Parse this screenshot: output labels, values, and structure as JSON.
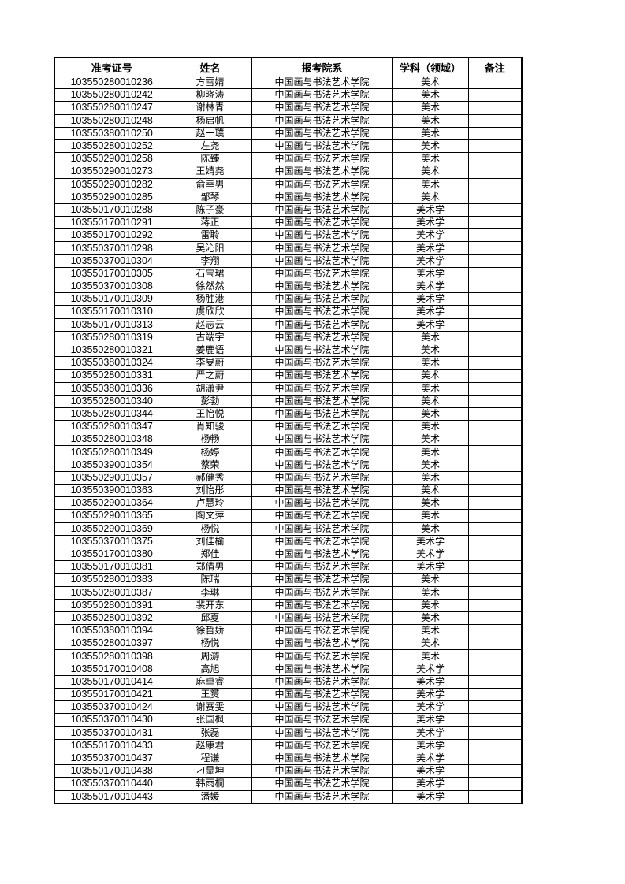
{
  "headers": [
    "准考证号",
    "姓名",
    "报考院系",
    "学科（领域）",
    "备注"
  ],
  "rows": [
    [
      "103550280010236",
      "方雪婧",
      "中国画与书法艺术学院",
      "美术",
      ""
    ],
    [
      "103550280010242",
      "柳晓涛",
      "中国画与书法艺术学院",
      "美术",
      ""
    ],
    [
      "103550280010247",
      "谢林青",
      "中国画与书法艺术学院",
      "美术",
      ""
    ],
    [
      "103550280010248",
      "杨启帆",
      "中国画与书法艺术学院",
      "美术",
      ""
    ],
    [
      "103550380010250",
      "赵一璞",
      "中国画与书法艺术学院",
      "美术",
      ""
    ],
    [
      "103550280010252",
      "左尧",
      "中国画与书法艺术学院",
      "美术",
      ""
    ],
    [
      "103550290010258",
      "陈臻",
      "中国画与书法艺术学院",
      "美术",
      ""
    ],
    [
      "103550290010273",
      "王婧尧",
      "中国画与书法艺术学院",
      "美术",
      ""
    ],
    [
      "103550290010282",
      "俞幸男",
      "中国画与书法艺术学院",
      "美术",
      ""
    ],
    [
      "103550290010285",
      "邹琴",
      "中国画与书法艺术学院",
      "美术",
      ""
    ],
    [
      "103550170010288",
      "陈子豪",
      "中国画与书法艺术学院",
      "美术学",
      ""
    ],
    [
      "103550170010291",
      "蒋正",
      "中国画与书法艺术学院",
      "美术学",
      ""
    ],
    [
      "103550170010292",
      "雷聆",
      "中国画与书法艺术学院",
      "美术学",
      ""
    ],
    [
      "103550370010298",
      "吴沁阳",
      "中国画与书法艺术学院",
      "美术学",
      ""
    ],
    [
      "103550370010304",
      "李翔",
      "中国画与书法艺术学院",
      "美术学",
      ""
    ],
    [
      "103550170010305",
      "石宝珺",
      "中国画与书法艺术学院",
      "美术学",
      ""
    ],
    [
      "103550370010308",
      "徐然然",
      "中国画与书法艺术学院",
      "美术学",
      ""
    ],
    [
      "103550170010309",
      "杨胜港",
      "中国画与书法艺术学院",
      "美术学",
      ""
    ],
    [
      "103550170010310",
      "虞欣欣",
      "中国画与书法艺术学院",
      "美术学",
      ""
    ],
    [
      "103550170010313",
      "赵志云",
      "中国画与书法艺术学院",
      "美术学",
      ""
    ],
    [
      "103550280010319",
      "古端宇",
      "中国画与书法艺术学院",
      "美术",
      ""
    ],
    [
      "103550280010321",
      "姜鹿语",
      "中国画与书法艺术学院",
      "美术",
      ""
    ],
    [
      "103550380010324",
      "李旻蔚",
      "中国画与书法艺术学院",
      "美术",
      ""
    ],
    [
      "103550280010331",
      "严之蔚",
      "中国画与书法艺术学院",
      "美术",
      ""
    ],
    [
      "103550380010336",
      "胡潇尹",
      "中国画与书法艺术学院",
      "美术",
      ""
    ],
    [
      "103550280010340",
      "彭勃",
      "中国画与书法艺术学院",
      "美术",
      ""
    ],
    [
      "103550280010344",
      "王怡悦",
      "中国画与书法艺术学院",
      "美术",
      ""
    ],
    [
      "103550280010347",
      "肖知骏",
      "中国画与书法艺术学院",
      "美术",
      ""
    ],
    [
      "103550280010348",
      "杨畅",
      "中国画与书法艺术学院",
      "美术",
      ""
    ],
    [
      "103550280010349",
      "杨婷",
      "中国画与书法艺术学院",
      "美术",
      ""
    ],
    [
      "103550390010354",
      "蔡荣",
      "中国画与书法艺术学院",
      "美术",
      ""
    ],
    [
      "103550290010357",
      "郝健秀",
      "中国画与书法艺术学院",
      "美术",
      ""
    ],
    [
      "103550390010363",
      "刘怡彤",
      "中国画与书法艺术学院",
      "美术",
      ""
    ],
    [
      "103550290010364",
      "卢慧玲",
      "中国画与书法艺术学院",
      "美术",
      ""
    ],
    [
      "103550290010365",
      "陶文萍",
      "中国画与书法艺术学院",
      "美术",
      ""
    ],
    [
      "103550290010369",
      "杨悦",
      "中国画与书法艺术学院",
      "美术",
      ""
    ],
    [
      "103550370010375",
      "刘佳榆",
      "中国画与书法艺术学院",
      "美术学",
      ""
    ],
    [
      "103550170010380",
      "郑佳",
      "中国画与书法艺术学院",
      "美术学",
      ""
    ],
    [
      "103550170010381",
      "郑倩男",
      "中国画与书法艺术学院",
      "美术学",
      ""
    ],
    [
      "103550280010383",
      "陈瑞",
      "中国画与书法艺术学院",
      "美术",
      ""
    ],
    [
      "103550280010387",
      "李琳",
      "中国画与书法艺术学院",
      "美术",
      ""
    ],
    [
      "103550280010391",
      "裴开东",
      "中国画与书法艺术学院",
      "美术",
      ""
    ],
    [
      "103550280010392",
      "邱夏",
      "中国画与书法艺术学院",
      "美术",
      ""
    ],
    [
      "103550380010394",
      "徐哲娇",
      "中国画与书法艺术学院",
      "美术",
      ""
    ],
    [
      "103550280010397",
      "杨悦",
      "中国画与书法艺术学院",
      "美术",
      ""
    ],
    [
      "103550280010398",
      "周游",
      "中国画与书法艺术学院",
      "美术",
      ""
    ],
    [
      "103550170010408",
      "高旭",
      "中国画与书法艺术学院",
      "美术学",
      ""
    ],
    [
      "103550170010414",
      "麻卓睿",
      "中国画与书法艺术学院",
      "美术学",
      ""
    ],
    [
      "103550170010421",
      "王赟",
      "中国画与书法艺术学院",
      "美术学",
      ""
    ],
    [
      "103550370010424",
      "谢赛雯",
      "中国画与书法艺术学院",
      "美术学",
      ""
    ],
    [
      "103550370010430",
      "张国枫",
      "中国画与书法艺术学院",
      "美术学",
      ""
    ],
    [
      "103550370010431",
      "张磊",
      "中国画与书法艺术学院",
      "美术学",
      ""
    ],
    [
      "103550170010433",
      "赵康君",
      "中国画与书法艺术学院",
      "美术学",
      ""
    ],
    [
      "103550370010437",
      "程谦",
      "中国画与书法艺术学院",
      "美术学",
      ""
    ],
    [
      "103550170010438",
      "刁显坤",
      "中国画与书法艺术学院",
      "美术学",
      ""
    ],
    [
      "103550370010440",
      "韩雨桐",
      "中国画与书法艺术学院",
      "美术学",
      ""
    ],
    [
      "103550170010443",
      "潘媛",
      "中国画与书法艺术学院",
      "美术学",
      ""
    ]
  ]
}
